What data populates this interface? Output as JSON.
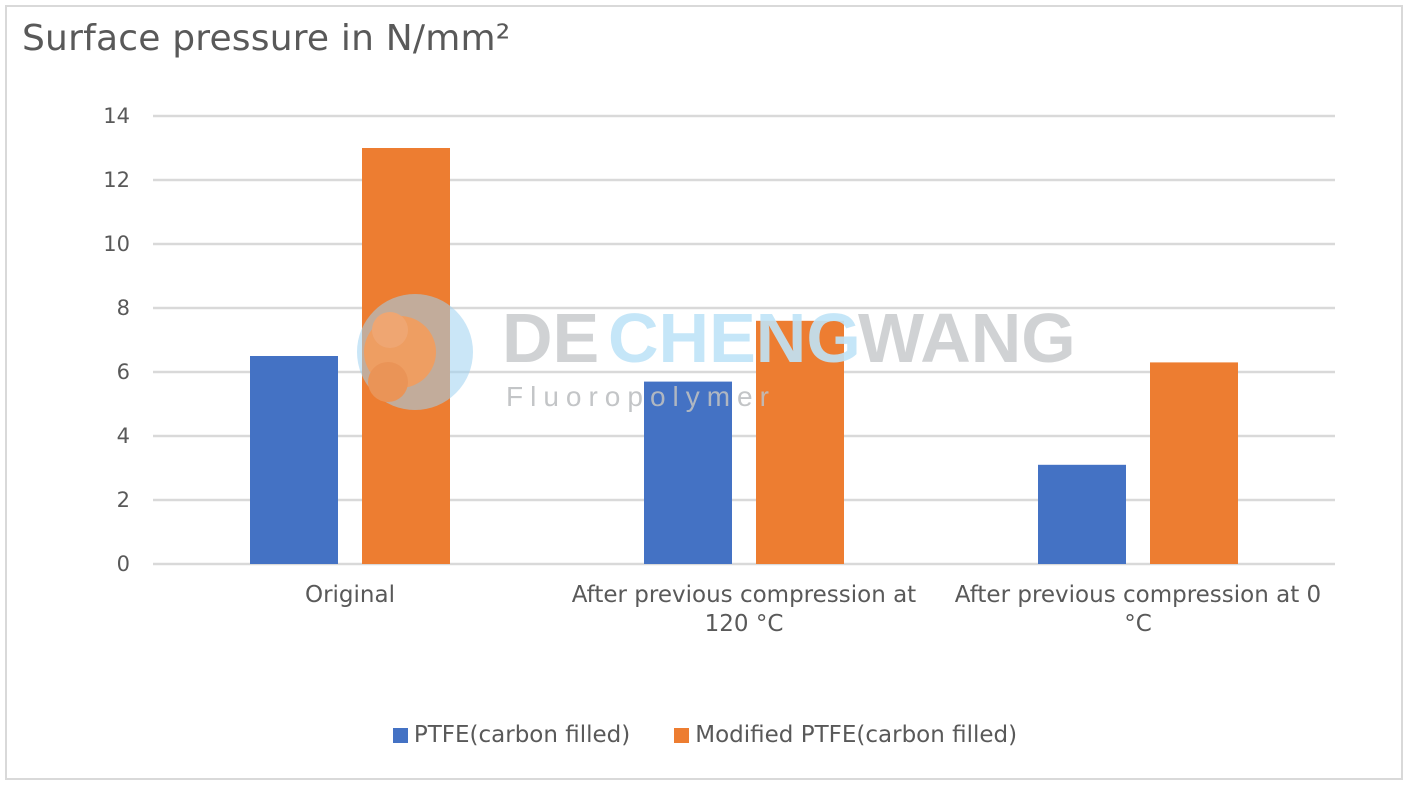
{
  "chart_data": {
    "type": "bar",
    "title": "Surface pressure in N/mm²",
    "categories": [
      "Original",
      "After previous compression at 120 °C",
      "After previous compression at 0 °C"
    ],
    "category_lines": [
      [
        "Original"
      ],
      [
        "After previous compression at",
        "120 °C"
      ],
      [
        "After previous compression at 0",
        "°C"
      ]
    ],
    "series": [
      {
        "name": "PTFE(carbon filled)",
        "values": [
          6.5,
          5.7,
          3.1
        ],
        "color": "#4472C4"
      },
      {
        "name": "Modified PTFE(carbon filled)",
        "values": [
          13,
          7.6,
          6.3
        ],
        "color": "#ED7D31"
      }
    ],
    "ylim": [
      0,
      14
    ],
    "yticks": [
      0,
      2,
      4,
      6,
      8,
      10,
      12,
      14
    ],
    "grid": true,
    "legend_position": "bottom"
  },
  "watermark": {
    "brand_part1": "DE",
    "brand_part2": "CHENG",
    "brand_part3": "WANG",
    "tagline": "Fluoropolymer"
  }
}
